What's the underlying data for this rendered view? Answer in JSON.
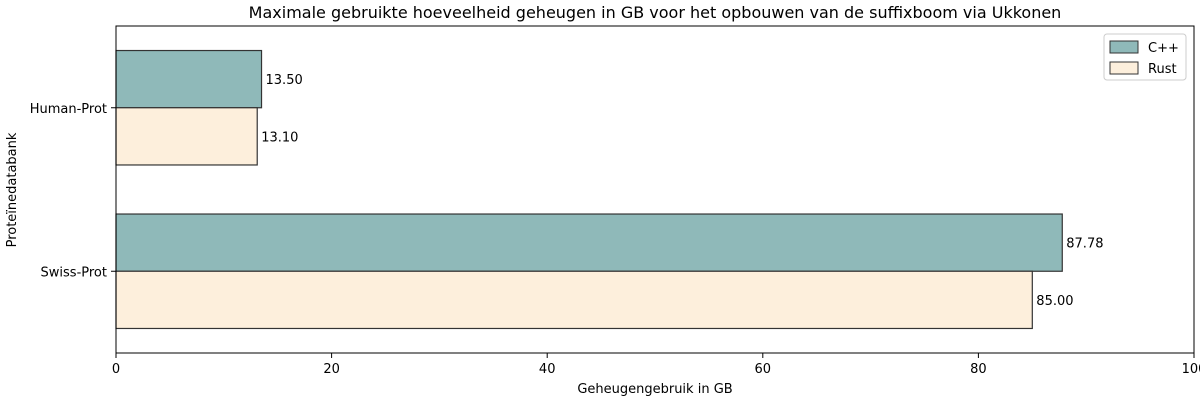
{
  "chart_data": {
    "type": "bar",
    "orientation": "horizontal",
    "title": "Maximale gebruikte hoeveelheid geheugen in GB voor het opbouwen van de suffixboom via Ukkonen",
    "xlabel": "Geheugengebruik in GB",
    "ylabel": "Proteïnedatabank",
    "categories": [
      "Human-Prot",
      "Swiss-Prot"
    ],
    "series": [
      {
        "name": "C++",
        "values": [
          13.5,
          87.78
        ],
        "labels": [
          "13.50",
          "87.78"
        ],
        "color": "#8fb9b9"
      },
      {
        "name": "Rust",
        "values": [
          13.1,
          85.0
        ],
        "labels": [
          "13.10",
          "85.00"
        ],
        "color": "#fdefdc"
      }
    ],
    "xlim": [
      0,
      100
    ],
    "xticks": [
      "0",
      "20",
      "40",
      "60",
      "80",
      "100"
    ],
    "grid": false,
    "legend": "top-right",
    "bar_edge_color": "#333333"
  }
}
